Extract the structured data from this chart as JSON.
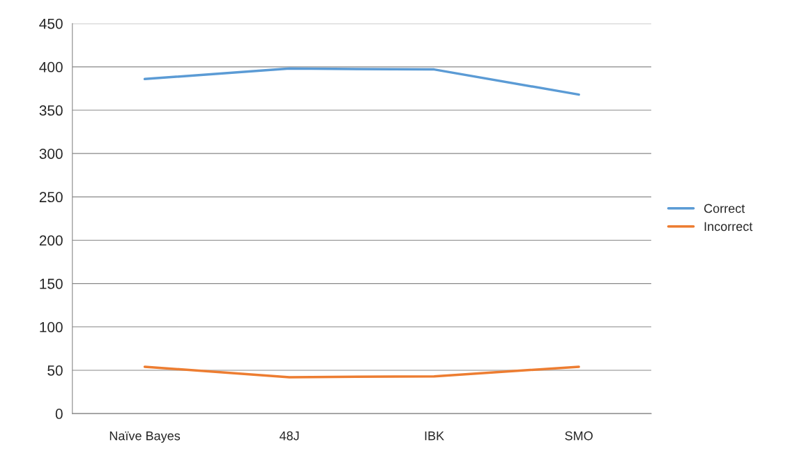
{
  "chart_data": {
    "type": "line",
    "categories": [
      "Naïve Bayes",
      "48J",
      "IBK",
      "SMO"
    ],
    "series": [
      {
        "name": "Correct",
        "color": "#5b9bd5",
        "values": [
          386,
          398,
          397,
          368
        ]
      },
      {
        "name": "Incorrect",
        "color": "#ed7d31",
        "values": [
          54,
          42,
          43,
          54
        ]
      }
    ],
    "ylim": [
      0,
      450
    ],
    "yticks": [
      0,
      50,
      100,
      150,
      200,
      250,
      300,
      350,
      400,
      450
    ],
    "grid": "y",
    "legend": "right",
    "marker": "none",
    "line_style": "solid"
  }
}
